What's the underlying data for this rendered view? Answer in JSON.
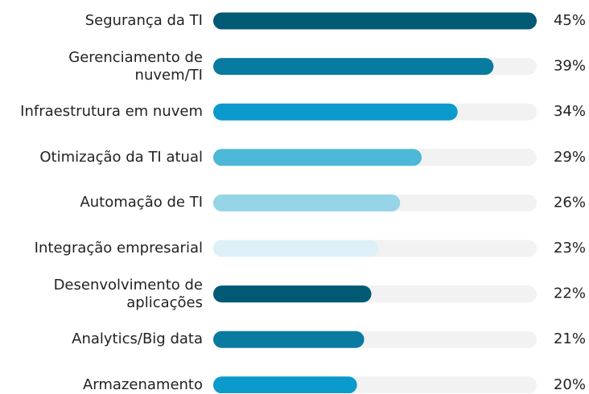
{
  "chart_data": {
    "type": "bar",
    "orientation": "horizontal",
    "categories": [
      "Segurança da TI",
      "Gerenciamento de\nnuvem/TI",
      "Infraestrutura em nuvem",
      "Otimização da TI atual",
      "Automação de TI",
      "Integração empresarial",
      "Desenvolvimento de\naplicações",
      "Analytics/Big data",
      "Armazenamento"
    ],
    "values": [
      45,
      39,
      34,
      29,
      26,
      23,
      22,
      21,
      20
    ],
    "value_labels": [
      "45%",
      "39%",
      "34%",
      "29%",
      "26%",
      "23%",
      "22%",
      "21%",
      "20%"
    ],
    "colors": [
      "#005a73",
      "#0a7ba0",
      "#0a9acb",
      "#4eb8d8",
      "#96d4e8",
      "#ddf0f8",
      "#005a73",
      "#0a7ba0",
      "#0a9acb"
    ],
    "xlim": [
      0,
      45
    ]
  }
}
